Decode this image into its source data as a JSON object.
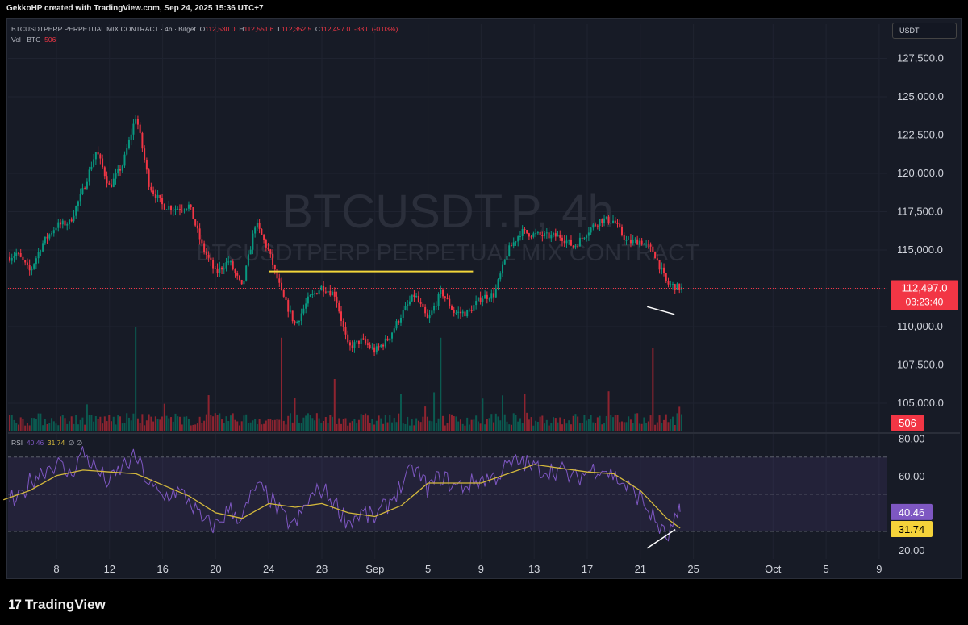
{
  "header": {
    "credit": "GekkoHP created with TradingView.com, Sep 24, 2025 15:36 UTC+7"
  },
  "legend": {
    "symbol": "BTCUSDTPERP PERPETUAL MIX CONTRACT · 4h · Bitget",
    "o_label": "O",
    "o": "112,530.0",
    "h_label": "H",
    "h": "112,551.6",
    "l_label": "L",
    "l": "112,352.5",
    "c_label": "C",
    "c": "112,497.0",
    "change": "-33.0 (-0.03%)",
    "vol_label": "Vol · BTC",
    "vol": "506",
    "rsi_label": "RSI",
    "rsi": "40.46",
    "rsi_ma": "31.74",
    "rsi_extra": "∅ ∅"
  },
  "watermark": {
    "line1": "BTCUSDT.P, 4h",
    "line2": "BTCUSDTPERP PERPETUAL MIX CONTRACT"
  },
  "currency_button": "USDT",
  "price_badge": {
    "price": "112,497.0",
    "countdown": "03:23:40"
  },
  "volume_badge": "506",
  "rsi_badges": {
    "rsi": "40.46",
    "ma": "31.74"
  },
  "logo": "TradingView",
  "colors": {
    "up": "#089981",
    "down": "#f23645",
    "rsi": "#7e57c2",
    "rsi_ma": "#d4b93c",
    "level": "#f2d63a"
  },
  "chart_data": {
    "type": "candlestick",
    "price_axis": {
      "ticks": [
        105000,
        107500,
        110000,
        112500,
        115000,
        117500,
        120000,
        122500,
        125000,
        127500
      ],
      "tick_labels": [
        "105,000.0",
        "107,500.0",
        "110,000.0",
        "112,500.0",
        "115,000.0",
        "117,500.0",
        "120,000.0",
        "122,500.0",
        "125,000.0",
        "127,500.0"
      ]
    },
    "x_axis": {
      "tick_labels": [
        "8",
        "12",
        "16",
        "20",
        "24",
        "28",
        "Sep",
        "5",
        "9",
        "13",
        "17",
        "21",
        "25",
        "Oct",
        "5",
        "9"
      ]
    },
    "price_path": [
      [
        "Aug 4",
        114300
      ],
      [
        "Aug 5",
        114800
      ],
      [
        "Aug 6",
        113600
      ],
      [
        "Aug 7",
        115500
      ],
      [
        "Aug 8",
        116600
      ],
      [
        "Aug 9",
        116800
      ],
      [
        "Aug 10",
        118900
      ],
      [
        "Aug 11",
        121500
      ],
      [
        "Aug 12",
        119100
      ],
      [
        "Aug 13",
        120600
      ],
      [
        "Aug 14",
        123800
      ],
      [
        "Aug 15",
        119200
      ],
      [
        "Aug 16",
        117900
      ],
      [
        "Aug 17",
        117700
      ],
      [
        "Aug 18",
        117900
      ],
      [
        "Aug 19",
        115200
      ],
      [
        "Aug 20",
        113500
      ],
      [
        "Aug 21",
        114300
      ],
      [
        "Aug 22",
        112500
      ],
      [
        "Aug 23",
        116800
      ],
      [
        "Aug 24",
        114900
      ],
      [
        "Aug 25",
        112100
      ],
      [
        "Aug 26",
        110100
      ],
      [
        "Aug 27",
        111800
      ],
      [
        "Aug 28",
        112600
      ],
      [
        "Aug 29",
        112100
      ],
      [
        "Aug 30",
        108600
      ],
      [
        "Aug 31",
        109100
      ],
      [
        "Sep 1",
        108400
      ],
      [
        "Sep 2",
        109200
      ],
      [
        "Sep 3",
        110800
      ],
      [
        "Sep 4",
        112100
      ],
      [
        "Sep 5",
        110400
      ],
      [
        "Sep 6",
        112300
      ],
      [
        "Sep 7",
        110900
      ],
      [
        "Sep 8",
        110900
      ],
      [
        "Sep 9",
        111900
      ],
      [
        "Sep 10",
        112100
      ],
      [
        "Sep 11",
        114900
      ],
      [
        "Sep 12",
        116200
      ],
      [
        "Sep 13",
        116000
      ],
      [
        "Sep 14",
        115900
      ],
      [
        "Sep 15",
        115900
      ],
      [
        "Sep 16",
        115200
      ],
      [
        "Sep 17",
        116200
      ],
      [
        "Sep 18",
        117000
      ],
      [
        "Sep 19",
        116900
      ],
      [
        "Sep 20",
        115500
      ],
      [
        "Sep 21",
        115600
      ],
      [
        "Sep 22",
        114900
      ],
      [
        "Sep 23",
        112800
      ],
      [
        "Sep 24",
        112497
      ]
    ],
    "horizontal_level": {
      "price": 113600,
      "from": "Aug 24",
      "to": "Sep 9"
    },
    "price_trendline": {
      "from": [
        "Sep 22",
        111300
      ],
      "to": [
        "Sep 24",
        110800
      ]
    },
    "current_price": 112497.0,
    "volume": {
      "last": 506,
      "spikes": [
        [
          "Aug 14",
          1.0
        ],
        [
          "Aug 25",
          0.9
        ],
        [
          "Aug 29",
          0.5
        ],
        [
          "Sep 6",
          0.9
        ],
        [
          "Sep 22",
          0.8
        ]
      ]
    },
    "rsi": {
      "axis_ticks": [
        20,
        40,
        60,
        80
      ],
      "tick_labels": [
        "20.00",
        "60.00",
        "80.00"
      ],
      "bands": [
        30,
        50,
        70
      ],
      "current": 40.46,
      "ma_current": 31.74,
      "rsi_path": [
        [
          "Aug 4",
          51
        ],
        [
          "Aug 5",
          45
        ],
        [
          "Aug 6",
          57
        ],
        [
          "Aug 7",
          63
        ],
        [
          "Aug 8",
          67
        ],
        [
          "Aug 9",
          60
        ],
        [
          "Aug 10",
          73
        ],
        [
          "Aug 11",
          63
        ],
        [
          "Aug 12",
          56
        ],
        [
          "Aug 13",
          65
        ],
        [
          "Aug 14",
          70
        ],
        [
          "Aug 15",
          55
        ],
        [
          "Aug 16",
          48
        ],
        [
          "Aug 17",
          52
        ],
        [
          "Aug 18",
          47
        ],
        [
          "Aug 19",
          35
        ],
        [
          "Aug 20",
          33
        ],
        [
          "Aug 21",
          42
        ],
        [
          "Aug 22",
          37
        ],
        [
          "Aug 23",
          54
        ],
        [
          "Aug 24",
          49
        ],
        [
          "Aug 25",
          38
        ],
        [
          "Aug 26",
          33
        ],
        [
          "Aug 27",
          47
        ],
        [
          "Aug 28",
          53
        ],
        [
          "Aug 29",
          45
        ],
        [
          "Aug 30",
          35
        ],
        [
          "Aug 31",
          40
        ],
        [
          "Sep 1",
          37
        ],
        [
          "Sep 2",
          45
        ],
        [
          "Sep 3",
          55
        ],
        [
          "Sep 4",
          64
        ],
        [
          "Sep 5",
          53
        ],
        [
          "Sep 6",
          60
        ],
        [
          "Sep 7",
          54
        ],
        [
          "Sep 8",
          55
        ],
        [
          "Sep 9",
          58
        ],
        [
          "Sep 10",
          59
        ],
        [
          "Sep 11",
          65
        ],
        [
          "Sep 12",
          68
        ],
        [
          "Sep 13",
          64
        ],
        [
          "Sep 14",
          63
        ],
        [
          "Sep 15",
          63
        ],
        [
          "Sep 16",
          58
        ],
        [
          "Sep 17",
          62
        ],
        [
          "Sep 18",
          65
        ],
        [
          "Sep 19",
          60
        ],
        [
          "Sep 20",
          54
        ],
        [
          "Sep 21",
          48
        ],
        [
          "Sep 22",
          37
        ],
        [
          "Sep 23",
          26
        ],
        [
          "Sep 24",
          40.46
        ]
      ],
      "ma_path": [
        [
          "Aug 4",
          47
        ],
        [
          "Aug 6",
          52
        ],
        [
          "Aug 8",
          60
        ],
        [
          "Aug 10",
          63
        ],
        [
          "Aug 12",
          62
        ],
        [
          "Aug 14",
          61
        ],
        [
          "Aug 16",
          55
        ],
        [
          "Aug 18",
          49
        ],
        [
          "Aug 20",
          40
        ],
        [
          "Aug 22",
          37
        ],
        [
          "Aug 24",
          45
        ],
        [
          "Aug 26",
          43
        ],
        [
          "Aug 28",
          45
        ],
        [
          "Aug 30",
          40
        ],
        [
          "Sep 1",
          38
        ],
        [
          "Sep 3",
          44
        ],
        [
          "Sep 5",
          56
        ],
        [
          "Sep 7",
          56
        ],
        [
          "Sep 9",
          56
        ],
        [
          "Sep 11",
          61
        ],
        [
          "Sep 13",
          66
        ],
        [
          "Sep 15",
          64
        ],
        [
          "Sep 17",
          62
        ],
        [
          "Sep 19",
          61
        ],
        [
          "Sep 21",
          52
        ],
        [
          "Sep 23",
          37
        ],
        [
          "Sep 24",
          31.74
        ]
      ],
      "trendline": {
        "from": [
          "Sep 22",
          21
        ],
        "to": [
          "Sep 24",
          31
        ]
      }
    }
  }
}
